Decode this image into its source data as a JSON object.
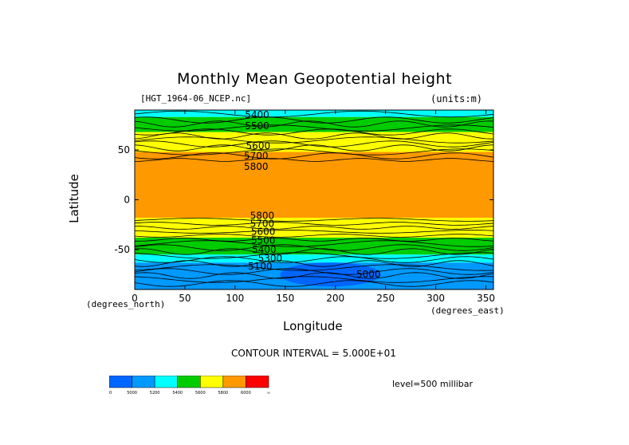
{
  "title": "Monthly Mean Geopotential height",
  "file_label": "[HGT_1964-06_NCEP.nc]",
  "units_label": "(units:m)",
  "x_axis": {
    "label": "Longitude",
    "unit_label": "(degrees_east)",
    "ticks": [
      "0",
      "50",
      "100",
      "150",
      "200",
      "250",
      "300",
      "350"
    ],
    "tick_values": [
      0,
      50,
      100,
      150,
      200,
      250,
      300,
      350
    ],
    "range": [
      0,
      357.5
    ]
  },
  "y_axis": {
    "label": "Latitude",
    "unit_label": "(degrees_north)",
    "ticks": [
      "50",
      "0",
      "-50"
    ],
    "tick_values": [
      50,
      0,
      -50
    ],
    "range": [
      -90,
      90
    ]
  },
  "contour_labels": [
    {
      "text": "5400",
      "lon": 122,
      "lat": 82
    },
    {
      "text": "5500",
      "lon": 122,
      "lat": 71
    },
    {
      "text": "5600",
      "lon": 123,
      "lat": 51
    },
    {
      "text": "5700",
      "lon": 121,
      "lat": 41
    },
    {
      "text": "5800",
      "lon": 121,
      "lat": 30
    },
    {
      "text": "5800",
      "lon": 127,
      "lat": -19
    },
    {
      "text": "5700",
      "lon": 127,
      "lat": -27
    },
    {
      "text": "5600",
      "lon": 128,
      "lat": -35
    },
    {
      "text": "5500",
      "lon": 128,
      "lat": -44
    },
    {
      "text": "5400",
      "lon": 129,
      "lat": -53
    },
    {
      "text": "5300",
      "lon": 135,
      "lat": -62
    },
    {
      "text": "5100",
      "lon": 125,
      "lat": -70
    },
    {
      "text": "5000",
      "lon": 233,
      "lat": -78
    }
  ],
  "contour_interval": "CONTOUR INTERVAL = 5.000E+01",
  "level_label": "level=500 millibar",
  "colorbar": {
    "colors": [
      "#0066ff",
      "#0099ff",
      "#00ffff",
      "#00cc00",
      "#ffff00",
      "#ff9900",
      "#ff0000"
    ],
    "labels": [
      "0",
      "5000",
      "5200",
      "5400",
      "5600",
      "5800",
      "6000",
      "∞"
    ]
  },
  "bands": [
    {
      "lat_top": 90,
      "lat_bottom": 83,
      "color": "#00ffff"
    },
    {
      "lat_top": 83,
      "lat_bottom": 68,
      "color": "#00cc00"
    },
    {
      "lat_top": 68,
      "lat_bottom": 48,
      "color": "#ffff00"
    },
    {
      "lat_top": 48,
      "lat_bottom": -18,
      "color": "#ff9900"
    },
    {
      "lat_top": -18,
      "lat_bottom": -38,
      "color": "#ffff00"
    },
    {
      "lat_top": -38,
      "lat_bottom": -55,
      "color": "#00cc00"
    },
    {
      "lat_top": -55,
      "lat_bottom": -63,
      "color": "#00ffff"
    },
    {
      "lat_top": -63,
      "lat_bottom": -90,
      "color": "#0099ff"
    }
  ],
  "low_region": {
    "lon_center": 195,
    "lat_center": -75,
    "lon_radius": 50,
    "lat_radius": 12,
    "color": "#0066ff"
  }
}
